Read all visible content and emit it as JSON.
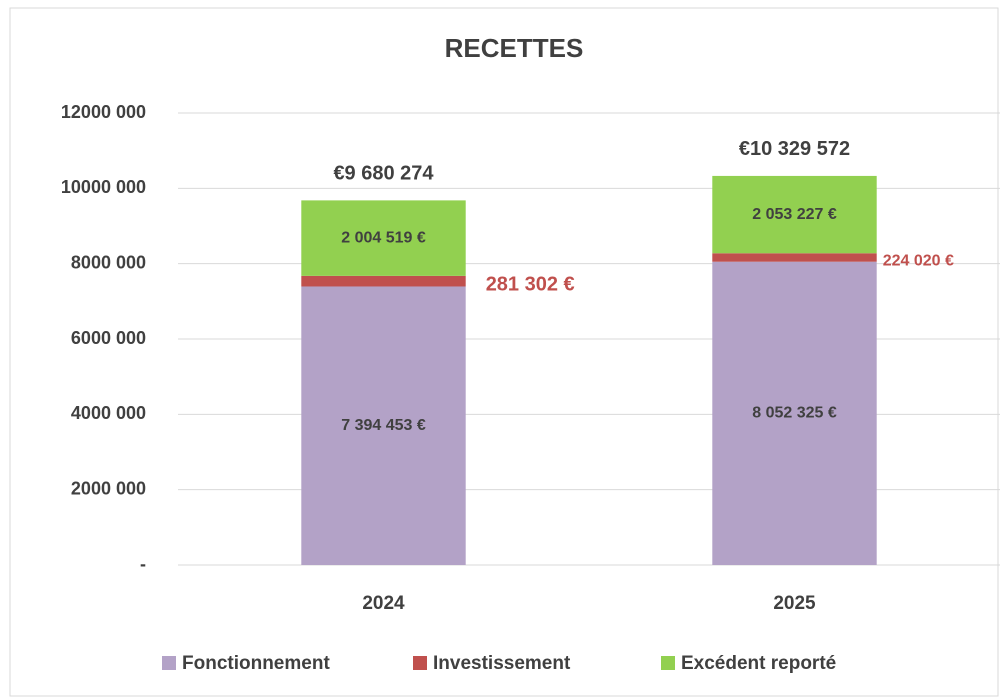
{
  "chart_data": {
    "type": "stacked_bar",
    "title": "RECETTES",
    "categories": [
      "2024",
      "2025"
    ],
    "series": [
      {
        "name": "Fonctionnement",
        "color": "#b3a2c7",
        "values": [
          7394453,
          8052325
        ],
        "value_labels": [
          "7 394 453  €",
          "8 052 325  €"
        ]
      },
      {
        "name": "Investissement",
        "color": "#c0504d",
        "values": [
          281302,
          224020
        ],
        "value_labels": [
          "281 302 €",
          "224 020 €"
        ]
      },
      {
        "name": "Excédent reporté",
        "color": "#92d050",
        "values": [
          2004519,
          2053227
        ],
        "value_labels": [
          "2 004 519  €",
          "2 053 227  €"
        ]
      }
    ],
    "totals": [
      9680274,
      10329572
    ],
    "total_labels": [
      "€9 680 274",
      "€10 329 572"
    ],
    "ylim": [
      0,
      12000000
    ],
    "yticks": [
      {
        "value": 0,
        "label": "-"
      },
      {
        "value": 2000000,
        "label": "2000 000"
      },
      {
        "value": 4000000,
        "label": "4000 000"
      },
      {
        "value": 6000000,
        "label": "6000 000"
      },
      {
        "value": 8000000,
        "label": "8000 000"
      },
      {
        "value": 10000000,
        "label": "10000 000"
      },
      {
        "value": 12000000,
        "label": "12000 000"
      }
    ],
    "grid": true,
    "legend": "bottom"
  }
}
